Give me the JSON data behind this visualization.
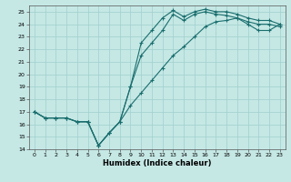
{
  "xlabel": "Humidex (Indice chaleur)",
  "xlim": [
    -0.5,
    23.5
  ],
  "ylim": [
    14,
    25.5
  ],
  "yticks": [
    14,
    15,
    16,
    17,
    18,
    19,
    20,
    21,
    22,
    23,
    24,
    25
  ],
  "xticks": [
    0,
    1,
    2,
    3,
    4,
    5,
    6,
    7,
    8,
    9,
    10,
    11,
    12,
    13,
    14,
    15,
    16,
    17,
    18,
    19,
    20,
    21,
    22,
    23
  ],
  "bg_color": "#c5e8e5",
  "grid_color": "#9fcfcc",
  "line_color": "#1a6e6e",
  "line1_x": [
    0,
    1,
    2,
    3,
    4,
    5,
    6,
    7,
    8,
    9,
    10,
    11,
    12,
    13,
    14,
    15,
    16,
    17,
    18,
    19,
    20,
    21,
    22,
    23
  ],
  "line1_y": [
    17.0,
    16.5,
    16.5,
    16.5,
    16.2,
    16.2,
    14.3,
    15.3,
    16.2,
    19.0,
    22.5,
    23.5,
    24.5,
    25.1,
    24.6,
    25.0,
    25.2,
    25.0,
    25.0,
    24.8,
    24.5,
    24.3,
    24.3,
    24.0
  ],
  "line2_x": [
    0,
    1,
    2,
    3,
    4,
    5,
    6,
    7,
    8,
    9,
    10,
    11,
    12,
    13,
    14,
    15,
    16,
    17,
    18,
    19,
    20,
    21,
    22,
    23
  ],
  "line2_y": [
    17.0,
    16.5,
    16.5,
    16.5,
    16.2,
    16.2,
    14.3,
    15.3,
    16.2,
    19.0,
    21.5,
    22.5,
    23.5,
    24.8,
    24.3,
    24.8,
    25.0,
    24.8,
    24.7,
    24.5,
    24.2,
    24.0,
    24.0,
    23.8
  ],
  "line3_x": [
    0,
    1,
    2,
    3,
    4,
    5,
    6,
    7,
    8,
    9,
    10,
    11,
    12,
    13,
    14,
    15,
    16,
    17,
    18,
    19,
    20,
    21,
    22,
    23
  ],
  "line3_y": [
    17.0,
    16.5,
    16.5,
    16.5,
    16.2,
    16.2,
    14.3,
    15.3,
    16.2,
    17.5,
    18.5,
    19.5,
    20.5,
    21.5,
    22.2,
    23.0,
    23.8,
    24.2,
    24.3,
    24.5,
    24.0,
    23.5,
    23.5,
    24.0
  ]
}
